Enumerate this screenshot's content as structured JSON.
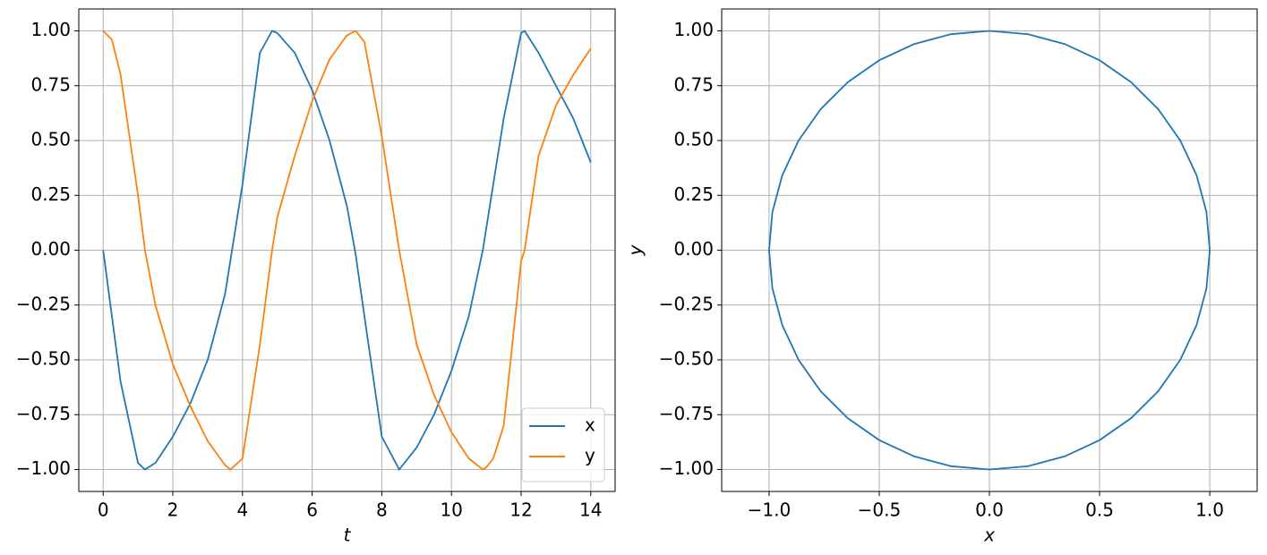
{
  "chart_data": [
    {
      "type": "line",
      "xlabel": "t",
      "legend": "lower right",
      "grid": true,
      "x": [
        0,
        0.25,
        0.5,
        1,
        1.2,
        1.5,
        2,
        2.5,
        3,
        3.5,
        3.65,
        4,
        4.5,
        4.85,
        5,
        5.5,
        6,
        6.5,
        7,
        7.25,
        7.5,
        8,
        8.5,
        9,
        9.5,
        10,
        10.5,
        10.9,
        11,
        11.2,
        11.5,
        12,
        12.1,
        12.5,
        13,
        13.5,
        14
      ],
      "series": [
        {
          "name": "x",
          "color": "#1f77b4",
          "values": [
            0,
            -0.3,
            -0.6,
            -0.97,
            -1,
            -0.97,
            -0.85,
            -0.7,
            -0.5,
            -0.2,
            -0.05,
            0.3,
            0.9,
            1,
            0.99,
            0.9,
            0.73,
            0.5,
            0.2,
            -0.02,
            -0.3,
            -0.85,
            -1,
            -0.9,
            -0.75,
            -0.55,
            -0.3,
            0,
            0.1,
            0.3,
            0.6,
            0.99,
            1,
            0.9,
            0.75,
            0.6,
            0.4
          ]
        },
        {
          "name": "y",
          "color": "#ff7f0e",
          "values": [
            1,
            0.96,
            0.8,
            0.25,
            0,
            -0.25,
            -0.52,
            -0.71,
            -0.87,
            -0.98,
            -1,
            -0.95,
            -0.43,
            0,
            0.15,
            0.43,
            0.68,
            0.87,
            0.98,
            1,
            0.95,
            0.52,
            0,
            -0.43,
            -0.66,
            -0.83,
            -0.95,
            -1,
            -0.99,
            -0.95,
            -0.8,
            -0.05,
            0,
            0.43,
            0.66,
            0.8,
            0.92
          ]
        }
      ],
      "xlim": [
        -0.7,
        14.7
      ],
      "xticks": [
        0,
        2,
        4,
        6,
        8,
        10,
        12,
        14
      ],
      "ylim": [
        -1.1,
        1.1
      ],
      "yticks": [
        {
          "value": 1,
          "label": "1.00"
        },
        {
          "value": 0.75,
          "label": "0.75"
        },
        {
          "value": 0.5,
          "label": "0.50"
        },
        {
          "value": 0.25,
          "label": "0.25"
        },
        {
          "value": 0,
          "label": "0.00"
        },
        {
          "value": -0.25,
          "label": "−0.25"
        },
        {
          "value": -0.5,
          "label": "−0.50"
        },
        {
          "value": -0.75,
          "label": "−0.75"
        },
        {
          "value": -1,
          "label": "−1.00"
        }
      ]
    },
    {
      "type": "line",
      "xlabel": "x",
      "ylabel": "y",
      "grid": true,
      "x": [
        1,
        0.985,
        0.94,
        0.866,
        0.766,
        0.643,
        0.5,
        0.342,
        0.174,
        0,
        -0.174,
        -0.342,
        -0.5,
        -0.643,
        -0.766,
        -0.866,
        -0.94,
        -0.985,
        -1,
        -0.985,
        -0.94,
        -0.866,
        -0.766,
        -0.643,
        -0.5,
        -0.342,
        -0.174,
        0,
        0.174,
        0.342,
        0.5,
        0.643,
        0.766,
        0.866,
        0.94,
        0.985,
        1
      ],
      "series": [
        {
          "color": "#1f77b4",
          "values": [
            0,
            0.174,
            0.342,
            0.5,
            0.643,
            0.766,
            0.866,
            0.94,
            0.985,
            1,
            0.985,
            0.94,
            0.866,
            0.766,
            0.643,
            0.5,
            0.342,
            0.174,
            0,
            -0.174,
            -0.342,
            -0.5,
            -0.643,
            -0.766,
            -0.866,
            -0.94,
            -0.985,
            -1,
            -0.985,
            -0.94,
            -0.866,
            -0.766,
            -0.643,
            -0.5,
            -0.342,
            -0.174,
            0
          ]
        }
      ],
      "xlim": [
        -1.215,
        1.215
      ],
      "xticks": [
        {
          "value": -1,
          "label": "−1.0"
        },
        {
          "value": -0.5,
          "label": "−0.5"
        },
        {
          "value": 0,
          "label": "0.0"
        },
        {
          "value": 0.5,
          "label": "0.5"
        },
        {
          "value": 1,
          "label": "1.0"
        }
      ],
      "ylim": [
        -1.1,
        1.1
      ],
      "yticks": [
        {
          "value": 1,
          "label": "1.00"
        },
        {
          "value": 0.75,
          "label": "0.75"
        },
        {
          "value": 0.5,
          "label": "0.50"
        },
        {
          "value": 0.25,
          "label": "0.25"
        },
        {
          "value": 0,
          "label": "0.00"
        },
        {
          "value": -0.25,
          "label": "−0.25"
        },
        {
          "value": -0.5,
          "label": "−0.50"
        },
        {
          "value": -0.75,
          "label": "−0.75"
        },
        {
          "value": -1,
          "label": "−1.00"
        }
      ]
    }
  ]
}
